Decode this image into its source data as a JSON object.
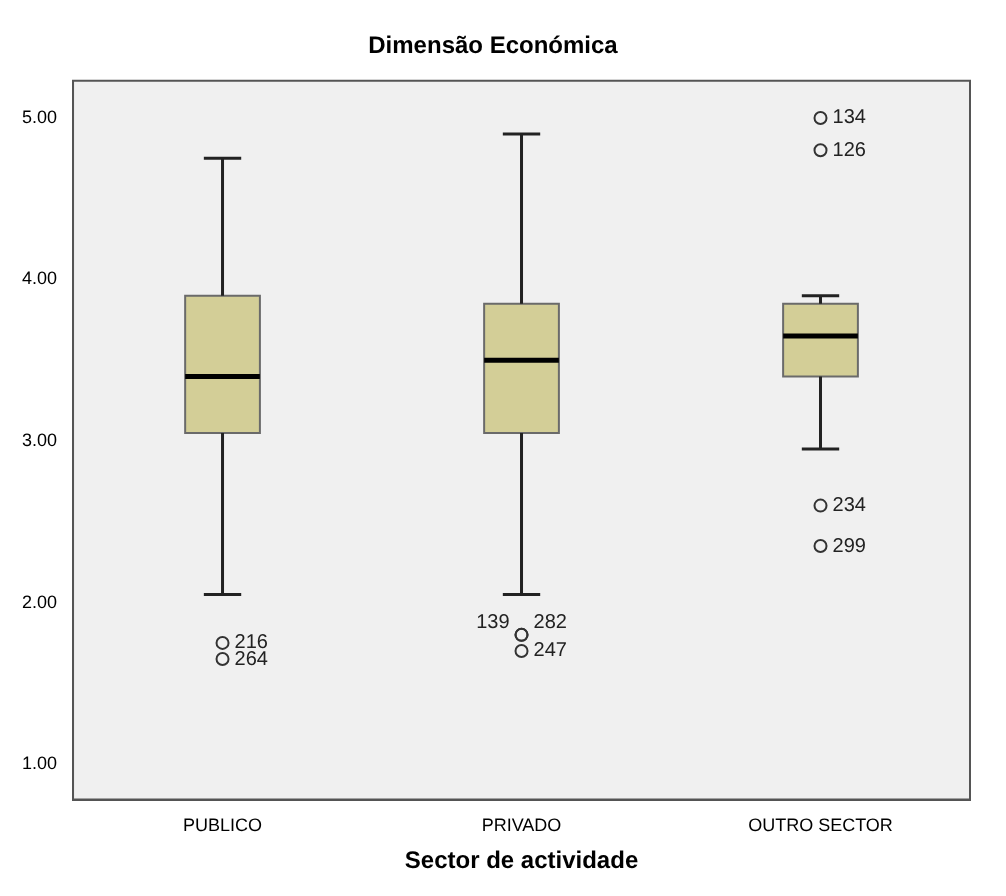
{
  "chart_data": {
    "type": "box",
    "title": "Dimensão Económica",
    "xlabel": "Sector de actividade",
    "categories": [
      "PUBLICO",
      "PRIVADO",
      "OUTRO SECTOR"
    ],
    "color": "#d3ce97",
    "boxes": [
      {
        "low": 2.05,
        "q1": 3.05,
        "median": 3.4,
        "q3": 3.9,
        "high": 4.75,
        "outliers": [
          1.75,
          1.65
        ]
      },
      {
        "low": 2.05,
        "q1": 3.05,
        "median": 3.5,
        "q3": 3.85,
        "high": 4.9,
        "outliers": [
          1.8,
          1.8,
          1.7
        ]
      },
      {
        "low": 2.95,
        "q1": 3.4,
        "median": 3.65,
        "q3": 3.85,
        "high": 3.9,
        "outliers": [
          5.0,
          4.8,
          2.6,
          2.35
        ]
      }
    ],
    "ylim": [
      0.78,
      5.23
    ],
    "yticks": [
      {
        "value": 1,
        "label": "1.00"
      },
      {
        "value": 2,
        "label": "2.00"
      },
      {
        "value": 3,
        "label": "3.00"
      },
      {
        "value": 4,
        "label": "4.00"
      },
      {
        "value": 5,
        "label": "5.00"
      }
    ],
    "grid": false,
    "legend": false,
    "marker": "circle",
    "annotations": [
      "216",
      "264",
      "139",
      "282",
      "247",
      "134",
      "126",
      "234",
      "299"
    ]
  }
}
